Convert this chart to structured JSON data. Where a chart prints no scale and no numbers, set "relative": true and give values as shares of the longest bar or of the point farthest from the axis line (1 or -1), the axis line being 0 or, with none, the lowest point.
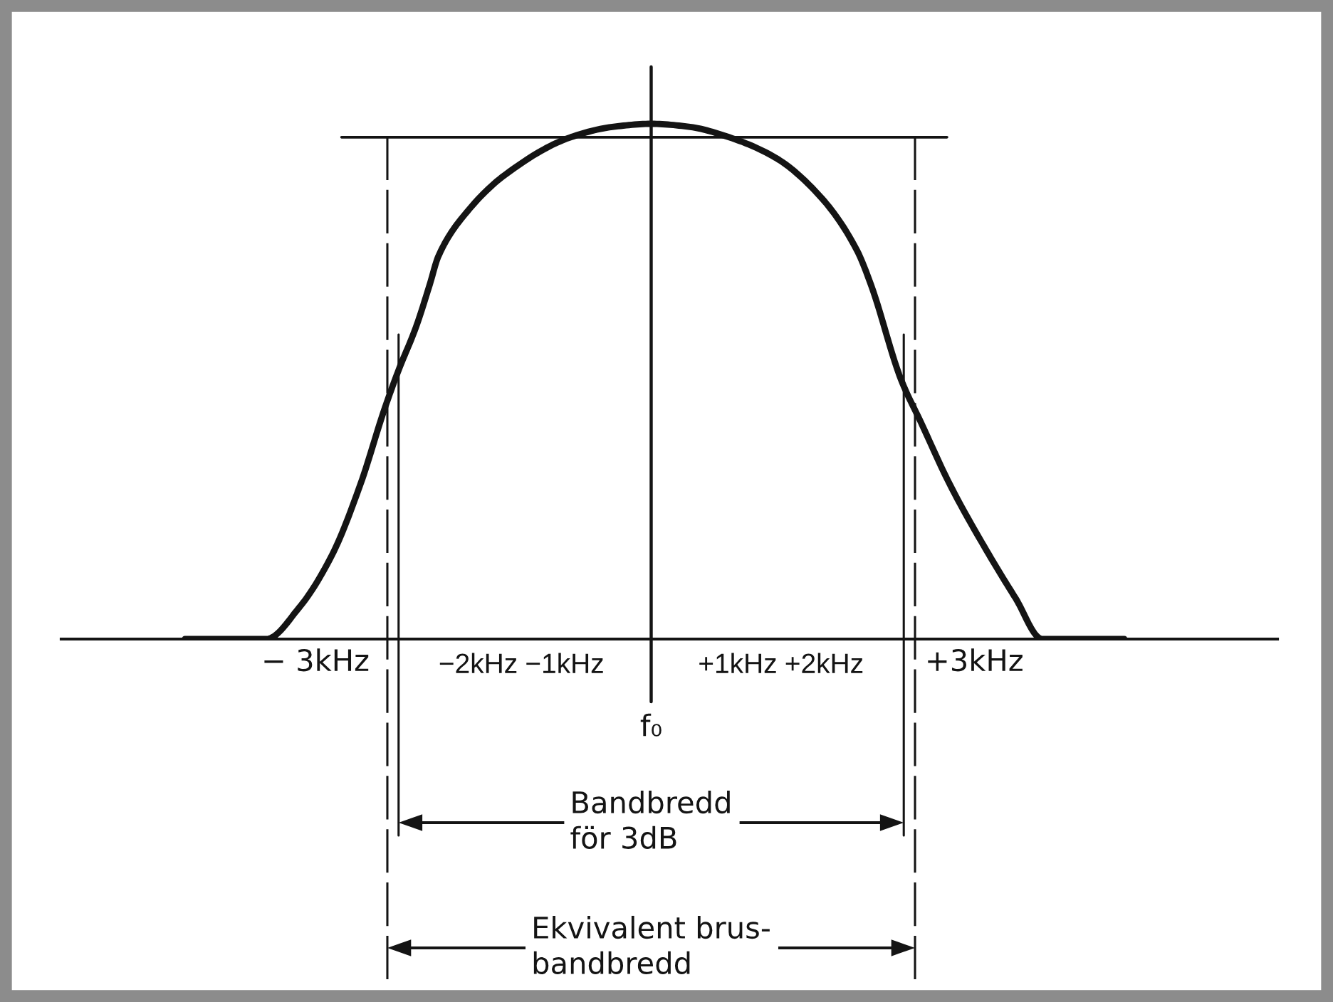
{
  "chart_data": {
    "type": "line",
    "relative": true,
    "series": [
      {
        "color": "#141414",
        "x": [
          -5.39,
          -4.45,
          -4.07,
          -3.69,
          -3.36,
          -3.08,
          -2.92,
          -2.72,
          -2.56,
          -2.46,
          -2.13,
          -1.69,
          -0.93,
          -0.45,
          0,
          0.45,
          0.9,
          1.44,
          1.97,
          2.38,
          2.54,
          2.89,
          3.12,
          3.45,
          3.88,
          4.21,
          4.52,
          5.47
        ],
        "values": [
          0,
          0,
          0.061,
          0.163,
          0.301,
          0.448,
          0.522,
          0.605,
          0.688,
          0.743,
          0.829,
          0.901,
          0.974,
          0.994,
          1,
          0.994,
          0.974,
          0.934,
          0.856,
          0.754,
          0.688,
          0.503,
          0.42,
          0.301,
          0.171,
          0.08,
          0,
          0
        ]
      },
      {
        "color": "#141414",
        "x": [
          -3.58,
          3.42
        ],
        "values": [
          0.974,
          0.974
        ]
      }
    ],
    "xlim": [
      -6.82,
      7.24
    ],
    "xticks": [
      {
        "value": -2,
        "label": "−2kHz"
      },
      {
        "value": -1,
        "label": "−1kHz"
      },
      {
        "value": 1,
        "label": "+1kHz"
      },
      {
        "value": 2,
        "label": "+2kHz"
      }
    ],
    "ref_lines": [
      {
        "axis": "x",
        "value": 0,
        "label": "f₀"
      },
      {
        "axis": "x",
        "value": -2.92
      },
      {
        "axis": "x",
        "value": 2.92
      },
      {
        "axis": "x",
        "value": -3.05,
        "label": "− 3kHz",
        "line_style": "dashed"
      },
      {
        "axis": "x",
        "value": 3.05,
        "label": "+3kHz",
        "line_style": "dashed"
      }
    ],
    "annotations": [
      "Bandbredd\nför 3dB",
      "Ekvivalent brus-\nbandbredd"
    ]
  }
}
